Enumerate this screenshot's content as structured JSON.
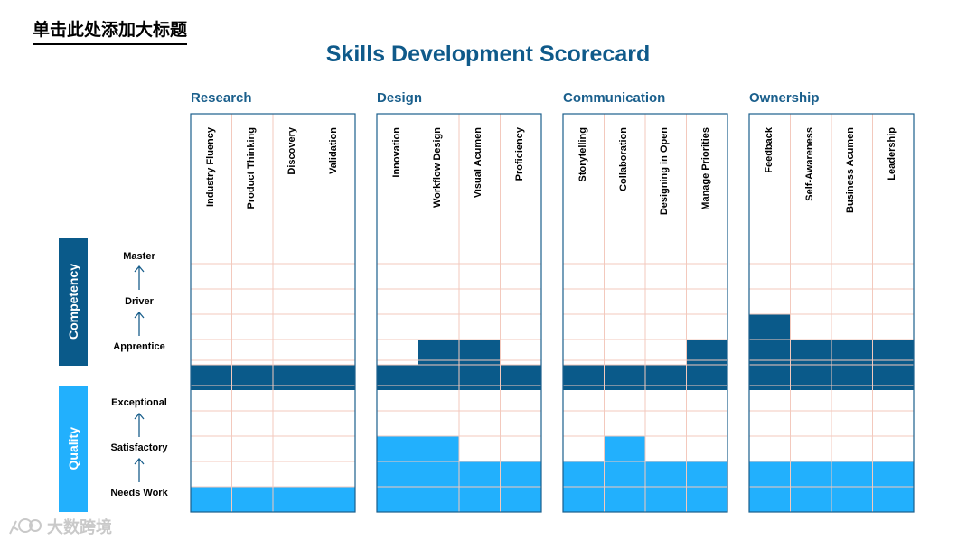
{
  "header": {
    "corner_title": "单击此处添加大标题"
  },
  "chart_data": {
    "type": "heatmap",
    "title": "Skills Development Scorecard",
    "colors": {
      "competency": "#0a5a8a",
      "quality": "#22b0fd",
      "grid_line": "#f3c9bd",
      "border": "#1a5f8c"
    },
    "competency": {
      "label": "Competency",
      "levels": [
        "Master",
        "Driver",
        "Apprentice"
      ],
      "rows_per_level": 2
    },
    "quality": {
      "label": "Quality",
      "levels": [
        "Exceptional",
        "Satisfactory",
        "Needs Work"
      ],
      "rows_per_level": 2
    },
    "groups": [
      {
        "name": "Research",
        "skills": [
          {
            "name": "Industry Fluency",
            "competency_rows": 1,
            "quality_rows": 1
          },
          {
            "name": "Product Thinking",
            "competency_rows": 1,
            "quality_rows": 1
          },
          {
            "name": "Discovery",
            "competency_rows": 1,
            "quality_rows": 1
          },
          {
            "name": "Validation",
            "competency_rows": 1,
            "quality_rows": 1
          }
        ]
      },
      {
        "name": "Design",
        "skills": [
          {
            "name": "Innovation",
            "competency_rows": 1,
            "quality_rows": 3
          },
          {
            "name": "Workflow Design",
            "competency_rows": 2,
            "quality_rows": 3
          },
          {
            "name": "Visual Acumen",
            "competency_rows": 2,
            "quality_rows": 2
          },
          {
            "name": "Proficiency",
            "competency_rows": 1,
            "quality_rows": 2
          }
        ]
      },
      {
        "name": "Communication",
        "skills": [
          {
            "name": "Storytelling",
            "competency_rows": 1,
            "quality_rows": 2
          },
          {
            "name": "Collaboration",
            "competency_rows": 1,
            "quality_rows": 3
          },
          {
            "name": "Designing in Open",
            "competency_rows": 1,
            "quality_rows": 2
          },
          {
            "name": "Manage Priorities",
            "competency_rows": 2,
            "quality_rows": 2
          }
        ]
      },
      {
        "name": "Ownership",
        "skills": [
          {
            "name": "Feedback",
            "competency_rows": 3,
            "quality_rows": 2
          },
          {
            "name": "Self-Awareness",
            "competency_rows": 2,
            "quality_rows": 2
          },
          {
            "name": "Business Acumen",
            "competency_rows": 2,
            "quality_rows": 2
          },
          {
            "name": "Leadership",
            "competency_rows": 2,
            "quality_rows": 2
          }
        ]
      }
    ]
  },
  "watermark": {
    "text": "大数跨境"
  }
}
